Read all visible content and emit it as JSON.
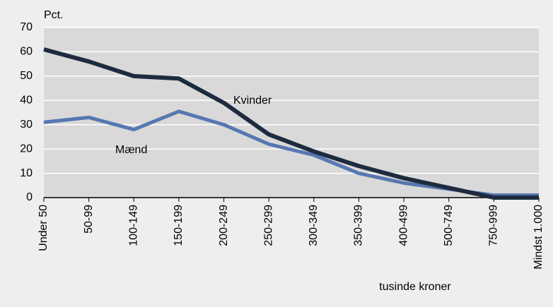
{
  "chart_data": {
    "type": "line",
    "y_label": "Pct.",
    "x_label": "tusinde kroner",
    "categories": [
      "Under 50",
      "50-99",
      "100-149",
      "150-199",
      "200-249",
      "250-299",
      "300-349",
      "350-399",
      "400-499",
      "500-749",
      "750-999",
      "Mindst 1.000"
    ],
    "series": [
      {
        "name": "Kvinder",
        "color": "#1e2b3f",
        "values": [
          61,
          56,
          50,
          49,
          39,
          26,
          19,
          13,
          8,
          4,
          0,
          0
        ]
      },
      {
        "name": "Mænd",
        "color": "#5677b0",
        "values": [
          31,
          33,
          28,
          35.5,
          30,
          22,
          17.5,
          10,
          6,
          3.5,
          1,
          1
        ]
      }
    ],
    "ylim": [
      0,
      70
    ],
    "yticks": [
      0,
      10,
      20,
      30,
      40,
      50,
      60,
      70
    ],
    "grid": true
  }
}
